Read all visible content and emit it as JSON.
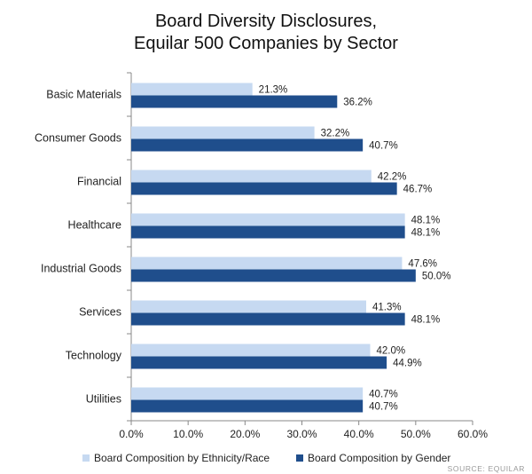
{
  "chart_data": {
    "type": "bar",
    "orientation": "horizontal",
    "title": "Board Diversity Disclosures,",
    "subtitle": "Equilar 500 Companies by Sector",
    "categories": [
      "Basic Materials",
      "Consumer Goods",
      "Financial",
      "Healthcare",
      "Industrial Goods",
      "Services",
      "Technology",
      "Utilities"
    ],
    "series": [
      {
        "name": "Board Composition by Ethnicity/Race",
        "color": "#c6d9f1",
        "values": [
          21.3,
          32.2,
          42.2,
          48.1,
          47.6,
          41.3,
          42.0,
          40.7
        ],
        "labels": [
          "21.3%",
          "32.2%",
          "42.2%",
          "48.1%",
          "47.6%",
          "41.3%",
          "42.0%",
          "40.7%"
        ]
      },
      {
        "name": "Board Composition by Gender",
        "color": "#1f4e8c",
        "values": [
          36.2,
          40.7,
          46.7,
          48.1,
          50.0,
          48.1,
          44.9,
          40.7
        ],
        "labels": [
          "36.2%",
          "40.7%",
          "46.7%",
          "48.1%",
          "50.0%",
          "48.1%",
          "44.9%",
          "40.7%"
        ]
      }
    ],
    "xlim": [
      0,
      60
    ],
    "xticks": [
      "0.0%",
      "10.0%",
      "20.0%",
      "30.0%",
      "40.0%",
      "50.0%",
      "60.0%"
    ],
    "grid": false,
    "legend_position": "bottom"
  },
  "source": "SOURCE: EQUILAR"
}
